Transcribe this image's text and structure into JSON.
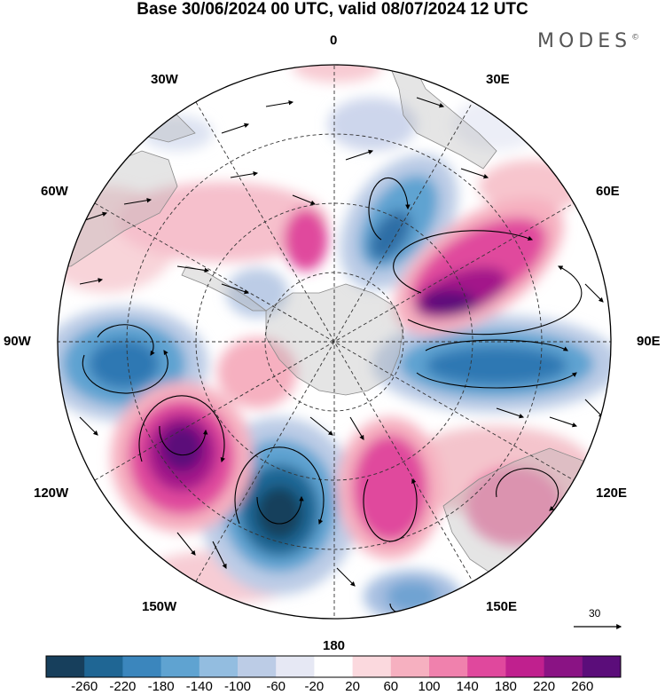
{
  "title": "Base 30/06/2024 00 UTC, valid 08/07/2024 12 UTC",
  "brand": {
    "text": "MODES",
    "mark": "©"
  },
  "longitude_labels": {
    "top": "0",
    "bottom": "180",
    "left": "90W",
    "right": "90E",
    "nw_upper": "30W",
    "nw_lower": "60W",
    "ne_upper": "30E",
    "ne_lower": "60E",
    "sw_upper": "120W",
    "sw_lower": "150W",
    "se_upper": "120E",
    "se_lower": "150E"
  },
  "reference_vector": {
    "label": "30"
  },
  "colorbar": {
    "ticks": [
      "-260",
      "-220",
      "-180",
      "-140",
      "-100",
      "-60",
      "-20",
      "20",
      "60",
      "100",
      "140",
      "180",
      "220",
      "260"
    ],
    "colors": [
      "#173f5c",
      "#1f6694",
      "#3b86bd",
      "#5fa3d1",
      "#93bde0",
      "#bccce6",
      "#e6e8f4",
      "#ffffff",
      "#fbd9de",
      "#f6b0c0",
      "#f081ad",
      "#e0489d",
      "#c0208e",
      "#8a1384",
      "#5b0d7a"
    ]
  }
}
